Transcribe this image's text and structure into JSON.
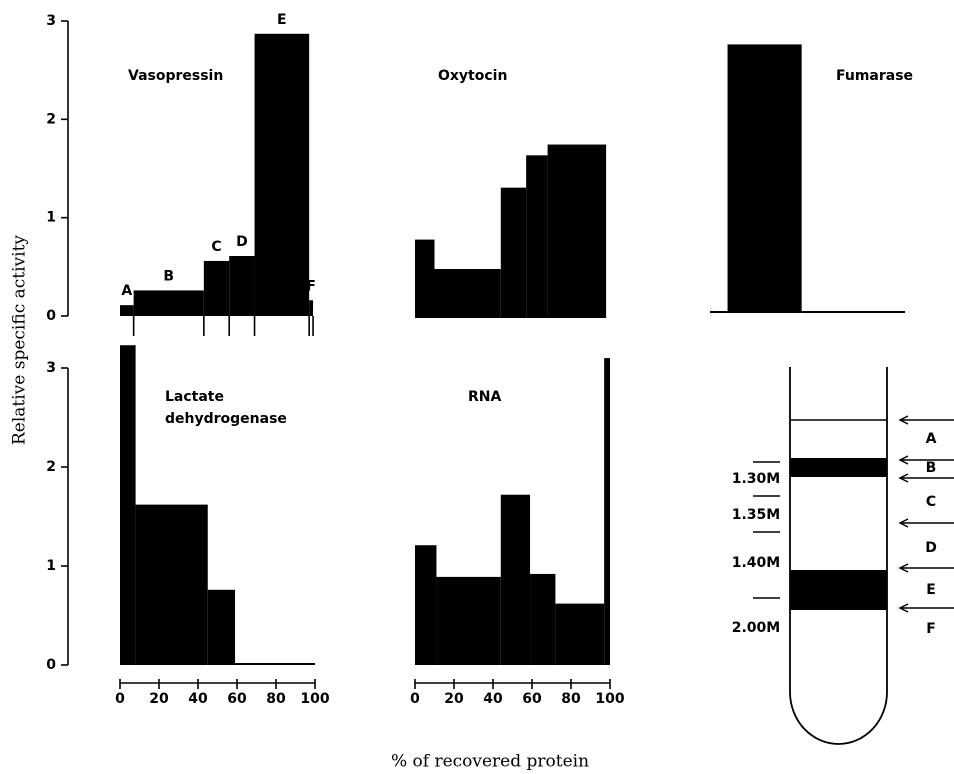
{
  "figure": {
    "y_label": "Relative specific activity",
    "x_label": "% of recovered protein"
  },
  "chart_data": [
    {
      "type": "histogram",
      "title": "Vasopressin",
      "bins": [
        0,
        7,
        43,
        56,
        69,
        97,
        99
      ],
      "values": [
        0.11,
        0.26,
        0.56,
        0.61,
        2.87,
        0.16
      ],
      "bar_labels": [
        "A",
        "B",
        "C",
        "D",
        "E",
        "F"
      ],
      "color": "#000000",
      "xlim": [
        0,
        100
      ],
      "ylim": [
        0,
        3
      ],
      "yticks": [
        0,
        1,
        2,
        3
      ]
    },
    {
      "type": "histogram",
      "title": "Oxytocin",
      "bins": [
        0,
        10,
        44,
        57,
        68,
        98
      ],
      "values": [
        0.8,
        0.5,
        1.33,
        1.66,
        1.77
      ],
      "color": "#000000",
      "xlim": [
        0,
        100
      ],
      "ylim": [
        0,
        3
      ]
    },
    {
      "type": "histogram",
      "title": "Fumarase",
      "bins": [
        0,
        9,
        47,
        100
      ],
      "values": [
        0,
        2.75,
        0
      ],
      "color": "#000000",
      "xlim": [
        0,
        100
      ],
      "ylim": [
        0,
        3
      ]
    },
    {
      "type": "histogram",
      "title": "Lactate dehydrogenase",
      "bins": [
        0,
        8,
        45,
        59,
        100
      ],
      "values": [
        3.23,
        1.62,
        0.76,
        0
      ],
      "color": "#000000",
      "xlim": [
        0,
        100
      ],
      "ylim": [
        0,
        3
      ],
      "yticks": [
        0,
        1,
        2,
        3
      ],
      "xticks": [
        0,
        20,
        40,
        60,
        80,
        100
      ]
    },
    {
      "type": "histogram",
      "title": "RNA",
      "bins": [
        0,
        11,
        44,
        59,
        72,
        97,
        100
      ],
      "values": [
        1.21,
        0.89,
        1.72,
        0.92,
        0.62,
        3.1
      ],
      "color": "#000000",
      "xlim": [
        0,
        100
      ],
      "ylim": [
        0,
        3
      ],
      "xticks": [
        0,
        20,
        40,
        60,
        80,
        100
      ]
    }
  ],
  "diagram": {
    "concentrations": [
      "1.30M",
      "1.35M",
      "1.40M",
      "2.00M"
    ],
    "fractions": [
      "A",
      "B",
      "C",
      "D",
      "E",
      "F"
    ]
  }
}
